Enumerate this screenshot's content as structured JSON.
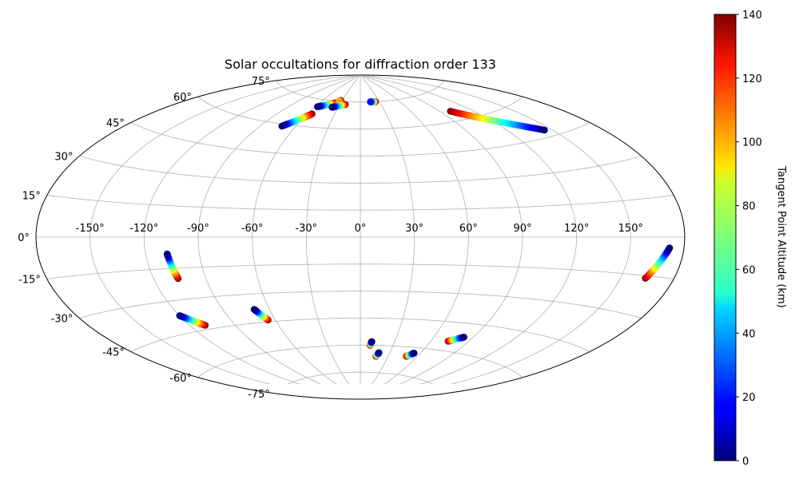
{
  "chart_data": {
    "type": "scatter",
    "projection": "aitoff",
    "title": "Solar occultations for diffraction order 133",
    "grid": true,
    "x_ticks": [
      "-150°",
      "-120°",
      "-90°",
      "-60°",
      "-30°",
      "0°",
      "30°",
      "60°",
      "90°",
      "120°",
      "150°"
    ],
    "y_ticks": [
      "75°",
      "60°",
      "45°",
      "30°",
      "15°",
      "0°",
      "-15°",
      "-30°",
      "-45°",
      "-60°",
      "-75°"
    ],
    "colorbar": {
      "label": "Tangent Point Altitude (km)",
      "colormap": "jet",
      "range": [
        0,
        140
      ],
      "ticks": [
        "0",
        "20",
        "40",
        "60",
        "80",
        "100",
        "120",
        "140"
      ]
    },
    "series": [
      {
        "lon_start": -72,
        "lat_start": 59,
        "lon_end": -55,
        "lat_end": 67,
        "alt_start": 0,
        "alt_end": 140
      },
      {
        "lon_start": -57,
        "lat_start": 71,
        "lon_end": -38,
        "lat_end": 74,
        "alt_start": 0,
        "alt_end": 140
      },
      {
        "lon_start": -34,
        "lat_start": 75,
        "lon_end": -32,
        "lat_end": 75.5,
        "alt_start": 100,
        "alt_end": 140
      },
      {
        "lon_start": -38,
        "lat_start": 71.5,
        "lon_end": -22,
        "lat_end": 73.5,
        "alt_start": 0,
        "alt_end": 140
      },
      {
        "lon_start": 16,
        "lat_start": 75,
        "lon_end": 24,
        "lat_end": 75,
        "alt_start": 20,
        "alt_end": 140
      },
      {
        "lon_start": 145,
        "lat_start": 48,
        "lon_end": 100,
        "lat_end": 65,
        "alt_start": 0,
        "alt_end": 140
      },
      {
        "lon_start": -108,
        "lat_start": -8,
        "lon_end": -106,
        "lat_end": -20,
        "alt_start": 0,
        "alt_end": 140
      },
      {
        "lon_start": -120,
        "lat_start": -37,
        "lon_end": -110,
        "lat_end": -43,
        "alt_start": 0,
        "alt_end": 140
      },
      {
        "lon_start": -70,
        "lat_start": -38,
        "lon_end": -65,
        "lat_end": -44,
        "alt_start": 0,
        "alt_end": 140
      },
      {
        "lon_start": 10,
        "lat_start": -58,
        "lon_end": 9,
        "lat_end": -60,
        "alt_start": 0,
        "alt_end": 140
      },
      {
        "lon_start": 19,
        "lat_start": -64,
        "lon_end": 17,
        "lat_end": -66,
        "alt_start": 0,
        "alt_end": 140
      },
      {
        "lon_start": 54,
        "lat_start": -63,
        "lon_end": 49,
        "lat_end": -65,
        "alt_start": 0,
        "alt_end": 140
      },
      {
        "lon_start": 83,
        "lat_start": -52,
        "lon_end": 74,
        "lat_end": -55,
        "alt_start": 0,
        "alt_end": 140
      },
      {
        "lon_start": 172,
        "lat_start": -4,
        "lon_end": 164,
        "lat_end": -16,
        "alt_start": 0,
        "alt_end": 140
      }
    ]
  }
}
